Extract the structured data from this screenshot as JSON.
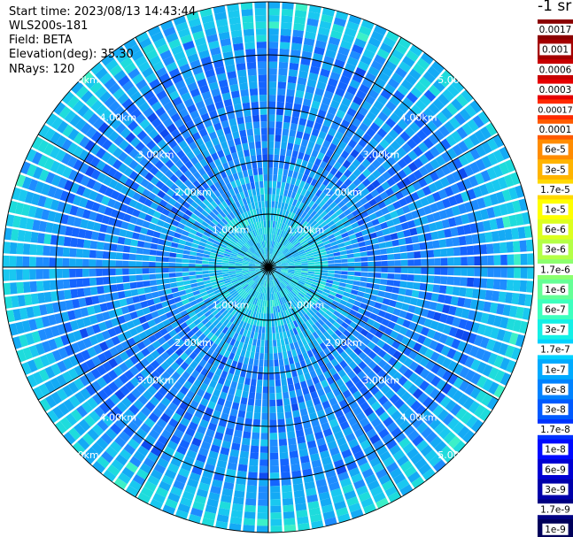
{
  "info": {
    "start_time": "Start time: 2023/08/13 14:43:44",
    "instrument": "WLS200s-181",
    "field": "Field: BETA",
    "elevation": "Elevation(deg): 35.30",
    "nrays": "NRays: 120"
  },
  "colorbar": {
    "unit": "-1 sr",
    "labels": [
      "0.0017",
      "0.001",
      "0.0006",
      "0.0003",
      "0.00017",
      "0.0001",
      "6e-5",
      "3e-5",
      "1.7e-5",
      "1e-5",
      "6e-6",
      "3e-6",
      "1.7e-6",
      "1e-6",
      "6e-7",
      "3e-7",
      "1.7e-7",
      "1e-7",
      "6e-8",
      "3e-8",
      "1.7e-8",
      "1e-8",
      "6e-9",
      "3e-9",
      "1.7e-9",
      "1e-9"
    ],
    "colors": [
      "#8b0000",
      "#a40000",
      "#c80000",
      "#e60000",
      "#ff2a00",
      "#ff5a00",
      "#ff8c00",
      "#ffb400",
      "#ffd800",
      "#ffff00",
      "#dcff1e",
      "#b4ff46",
      "#8cff6e",
      "#64ff96",
      "#3cffbe",
      "#14f0e6",
      "#00d2ff",
      "#00aaff",
      "#0082ff",
      "#005aff",
      "#0032ff",
      "#000aff",
      "#0000d2",
      "#0000aa",
      "#000082",
      "#00005a"
    ]
  },
  "chart_data": {
    "type": "heatmap",
    "projection": "polar",
    "rays": 120,
    "range_rings_km": [
      1,
      2,
      3,
      4,
      5
    ],
    "range_ring_labels": [
      "1.00km",
      "2.00km",
      "3.00km",
      "4.00km",
      "5.00km"
    ],
    "max_range_km": 5.0,
    "spokes": 12,
    "value_range": [
      1e-09,
      0.0017
    ],
    "typical_value": 3e-08,
    "grid": true
  }
}
